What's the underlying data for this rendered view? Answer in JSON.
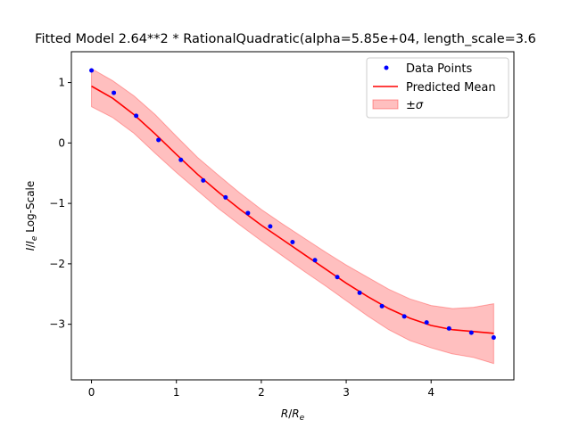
{
  "chart_data": {
    "type": "line",
    "title": "Fitted Model 2.64**2 * RationalQuadratic(alpha=5.85e+04, length_scale=3.6",
    "xlabel": "R/R_e",
    "ylabel": "I/I_e Log-Scale",
    "xlim": [
      -0.237,
      4.975
    ],
    "ylim": [
      -3.92,
      1.51
    ],
    "x_ticks": [
      0,
      1,
      2,
      3,
      4
    ],
    "y_ticks": [
      -3,
      -2,
      -1,
      0,
      1
    ],
    "legend_position": "top-right",
    "colors": {
      "points": "#0000ff",
      "mean": "#ff0000",
      "band_fill": "#ff0000",
      "band_alpha": 0.25
    },
    "series": [
      {
        "name": "Data Points",
        "kind": "scatter",
        "x": [
          0.0,
          0.263,
          0.526,
          0.789,
          1.053,
          1.316,
          1.579,
          1.842,
          2.105,
          2.368,
          2.632,
          2.895,
          3.158,
          3.421,
          3.684,
          3.947,
          4.211,
          4.474,
          4.737
        ],
        "y": [
          1.2,
          0.83,
          0.45,
          0.05,
          -0.28,
          -0.62,
          -0.9,
          -1.16,
          -1.38,
          -1.64,
          -1.94,
          -2.22,
          -2.48,
          -2.7,
          -2.87,
          -2.97,
          -3.07,
          -3.14,
          -3.22
        ]
      },
      {
        "name": "Predicted Mean",
        "kind": "line",
        "x": [
          0.0,
          0.25,
          0.5,
          0.75,
          1.0,
          1.25,
          1.5,
          1.75,
          2.0,
          2.25,
          2.5,
          2.75,
          3.0,
          3.25,
          3.5,
          3.75,
          4.0,
          4.25,
          4.5,
          4.737
        ],
        "y": [
          0.94,
          0.74,
          0.47,
          0.15,
          -0.19,
          -0.52,
          -0.82,
          -1.1,
          -1.36,
          -1.6,
          -1.84,
          -2.08,
          -2.32,
          -2.54,
          -2.74,
          -2.9,
          -3.02,
          -3.09,
          -3.12,
          -3.15
        ]
      },
      {
        "name": "±σ",
        "kind": "band",
        "x": [
          0.0,
          0.25,
          0.5,
          0.75,
          1.0,
          1.25,
          1.5,
          1.75,
          2.0,
          2.25,
          2.5,
          2.75,
          3.0,
          3.25,
          3.5,
          3.75,
          4.0,
          4.25,
          4.5,
          4.737
        ],
        "upper": [
          1.23,
          1.03,
          0.78,
          0.47,
          0.11,
          -0.24,
          -0.54,
          -0.83,
          -1.1,
          -1.34,
          -1.57,
          -1.8,
          -2.02,
          -2.22,
          -2.42,
          -2.58,
          -2.69,
          -2.74,
          -2.72,
          -2.66
        ],
        "lower": [
          0.6,
          0.42,
          0.16,
          -0.17,
          -0.49,
          -0.79,
          -1.09,
          -1.36,
          -1.62,
          -1.87,
          -2.12,
          -2.36,
          -2.61,
          -2.86,
          -3.09,
          -3.27,
          -3.39,
          -3.49,
          -3.55,
          -3.65
        ]
      }
    ],
    "legend": [
      {
        "label": "Data Points"
      },
      {
        "label": "Predicted Mean"
      },
      {
        "label": "±σ"
      }
    ]
  }
}
